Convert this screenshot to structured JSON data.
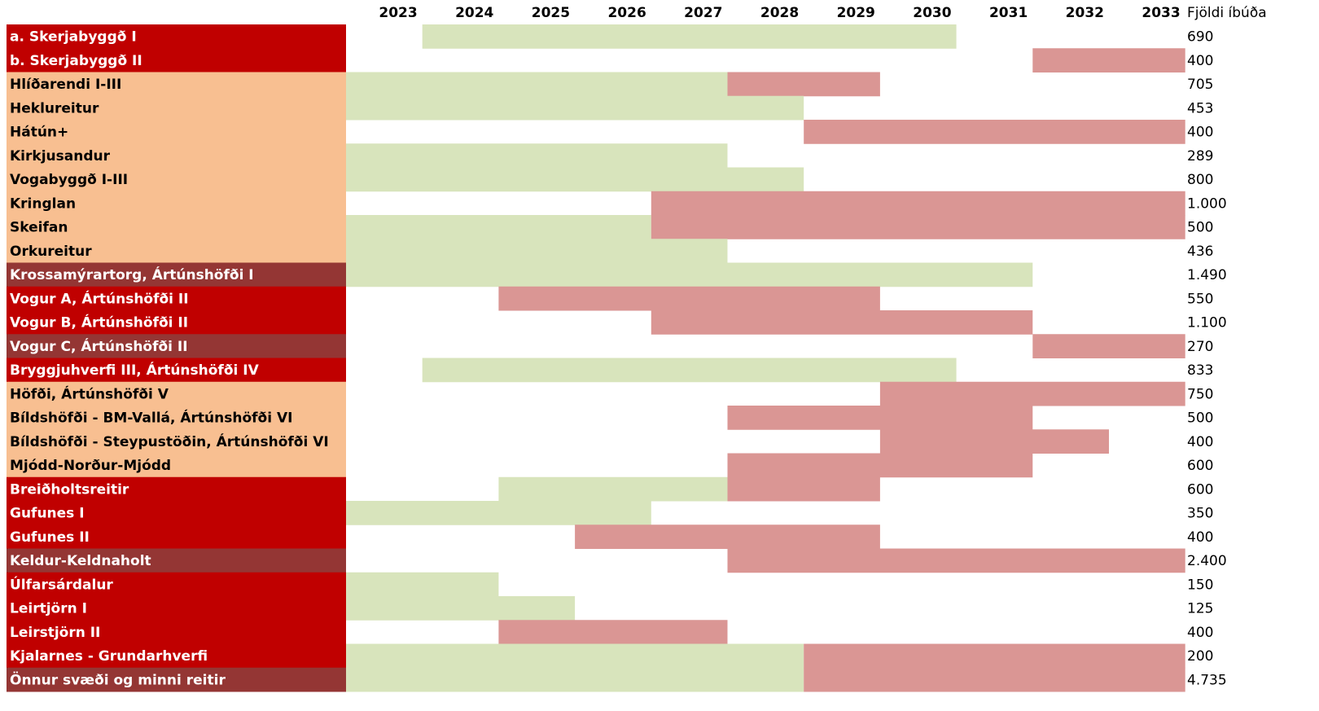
{
  "table": {
    "years": [
      2023,
      2024,
      2025,
      2026,
      2027,
      2028,
      2029,
      2030,
      2031,
      2032,
      2033
    ],
    "count_header": "Fjöldi íbúða",
    "colors": {
      "plan": "#d8e4bc",
      "build": "#da9694"
    },
    "rows": [
      {
        "name": "a. Skerjabyggð I",
        "fill": "#c00000",
        "text": "#ffffff",
        "plan": [
          2024,
          2030
        ],
        "build": null,
        "count": "690"
      },
      {
        "name": "b. Skerjabyggð II",
        "fill": "#c00000",
        "text": "#ffffff",
        "plan": null,
        "build": [
          2032,
          2033
        ],
        "count": "400"
      },
      {
        "name": "Hlíðarendi I-III",
        "fill": "#f8bf91",
        "text": "#000000",
        "plan": [
          2023,
          2027
        ],
        "build": [
          2028,
          2029
        ],
        "count": "705"
      },
      {
        "name": "Heklureitur",
        "fill": "#f8bf91",
        "text": "#000000",
        "plan": [
          2023,
          2028
        ],
        "build": null,
        "count": "453"
      },
      {
        "name": "Hátún+",
        "fill": "#f8bf91",
        "text": "#000000",
        "plan": null,
        "build": [
          2029,
          2033
        ],
        "count": "400"
      },
      {
        "name": "Kirkjusandur",
        "fill": "#f8bf91",
        "text": "#000000",
        "plan": [
          2023,
          2027
        ],
        "build": null,
        "count": "289"
      },
      {
        "name": "Vogabyggð I-III",
        "fill": "#f8bf91",
        "text": "#000000",
        "plan": [
          2023,
          2028
        ],
        "build": null,
        "count": "800"
      },
      {
        "name": "Kringlan",
        "fill": "#f8bf91",
        "text": "#000000",
        "plan": null,
        "build": [
          2027,
          2033
        ],
        "count": "1.000"
      },
      {
        "name": "Skeifan",
        "fill": "#f8bf91",
        "text": "#000000",
        "plan": [
          2023,
          2026
        ],
        "build": [
          2027,
          2033
        ],
        "count": "500"
      },
      {
        "name": "Orkureitur",
        "fill": "#f8bf91",
        "text": "#000000",
        "plan": [
          2023,
          2027
        ],
        "build": null,
        "count": "436"
      },
      {
        "name": "Krossamýrartorg, Ártúnshöfði I",
        "fill": "#943634",
        "text": "#ffffff",
        "plan": [
          2023,
          2031
        ],
        "build": null,
        "count": "1.490"
      },
      {
        "name": "Vogur A, Ártúnshöfði II",
        "fill": "#c00000",
        "text": "#ffffff",
        "plan": null,
        "build": [
          2025,
          2029
        ],
        "count": "550"
      },
      {
        "name": "Vogur B, Ártúnshöfði II",
        "fill": "#c00000",
        "text": "#ffffff",
        "plan": null,
        "build": [
          2027,
          2031
        ],
        "count": "1.100"
      },
      {
        "name": "Vogur C, Ártúnshöfði II",
        "fill": "#943634",
        "text": "#ffffff",
        "plan": null,
        "build": [
          2032,
          2033
        ],
        "count": "270"
      },
      {
        "name": "Bryggjuhverfi III, Ártúnshöfði IV",
        "fill": "#c00000",
        "text": "#ffffff",
        "plan": [
          2024,
          2030
        ],
        "build": null,
        "count": "833"
      },
      {
        "name": "Höfði, Ártúnshöfði V",
        "fill": "#f8bf91",
        "text": "#000000",
        "plan": null,
        "build": [
          2030,
          2033
        ],
        "count": "750"
      },
      {
        "name": "Bíldshöfði - BM-Vallá, Ártúnshöfði VI",
        "fill": "#f8bf91",
        "text": "#000000",
        "plan": null,
        "build": [
          2028,
          2031
        ],
        "count": "500"
      },
      {
        "name": "Bíldshöfði - Steypustöðin, Ártúnshöfði VI",
        "fill": "#f8bf91",
        "text": "#000000",
        "plan": null,
        "build": [
          2030,
          2032
        ],
        "count": "400"
      },
      {
        "name": "Mjódd-Norður-Mjódd",
        "fill": "#f8bf91",
        "text": "#000000",
        "plan": null,
        "build": [
          2028,
          2031
        ],
        "count": "600"
      },
      {
        "name": "Breiðholtsreitir",
        "fill": "#c00000",
        "text": "#ffffff",
        "plan": [
          2025,
          2027
        ],
        "build": [
          2028,
          2029
        ],
        "count": "600"
      },
      {
        "name": "Gufunes I",
        "fill": "#c00000",
        "text": "#ffffff",
        "plan": [
          2023,
          2026
        ],
        "build": null,
        "count": "350"
      },
      {
        "name": "Gufunes II",
        "fill": "#c00000",
        "text": "#ffffff",
        "plan": null,
        "build": [
          2026,
          2029
        ],
        "count": "400"
      },
      {
        "name": "Keldur-Keldnaholt",
        "fill": "#943634",
        "text": "#ffffff",
        "plan": null,
        "build": [
          2028,
          2033
        ],
        "count": "2.400"
      },
      {
        "name": "Úlfarsárdalur",
        "fill": "#c00000",
        "text": "#ffffff",
        "plan": [
          2023,
          2024
        ],
        "build": null,
        "count": "150"
      },
      {
        "name": "Leirtjörn I",
        "fill": "#c00000",
        "text": "#ffffff",
        "plan": [
          2023,
          2025
        ],
        "build": null,
        "count": "125"
      },
      {
        "name": "Leirstjörn II",
        "fill": "#c00000",
        "text": "#ffffff",
        "plan": null,
        "build": [
          2025,
          2027
        ],
        "count": "400"
      },
      {
        "name": "Kjalarnes - Grundarhverfi",
        "fill": "#c00000",
        "text": "#ffffff",
        "plan": [
          2023,
          2028
        ],
        "build": [
          2029,
          2033
        ],
        "count": "200"
      },
      {
        "name": "Önnur svæði og minni reitir",
        "fill": "#943634",
        "text": "#ffffff",
        "plan": [
          2023,
          2028
        ],
        "build": [
          2029,
          2033
        ],
        "count": "4.735"
      }
    ]
  }
}
